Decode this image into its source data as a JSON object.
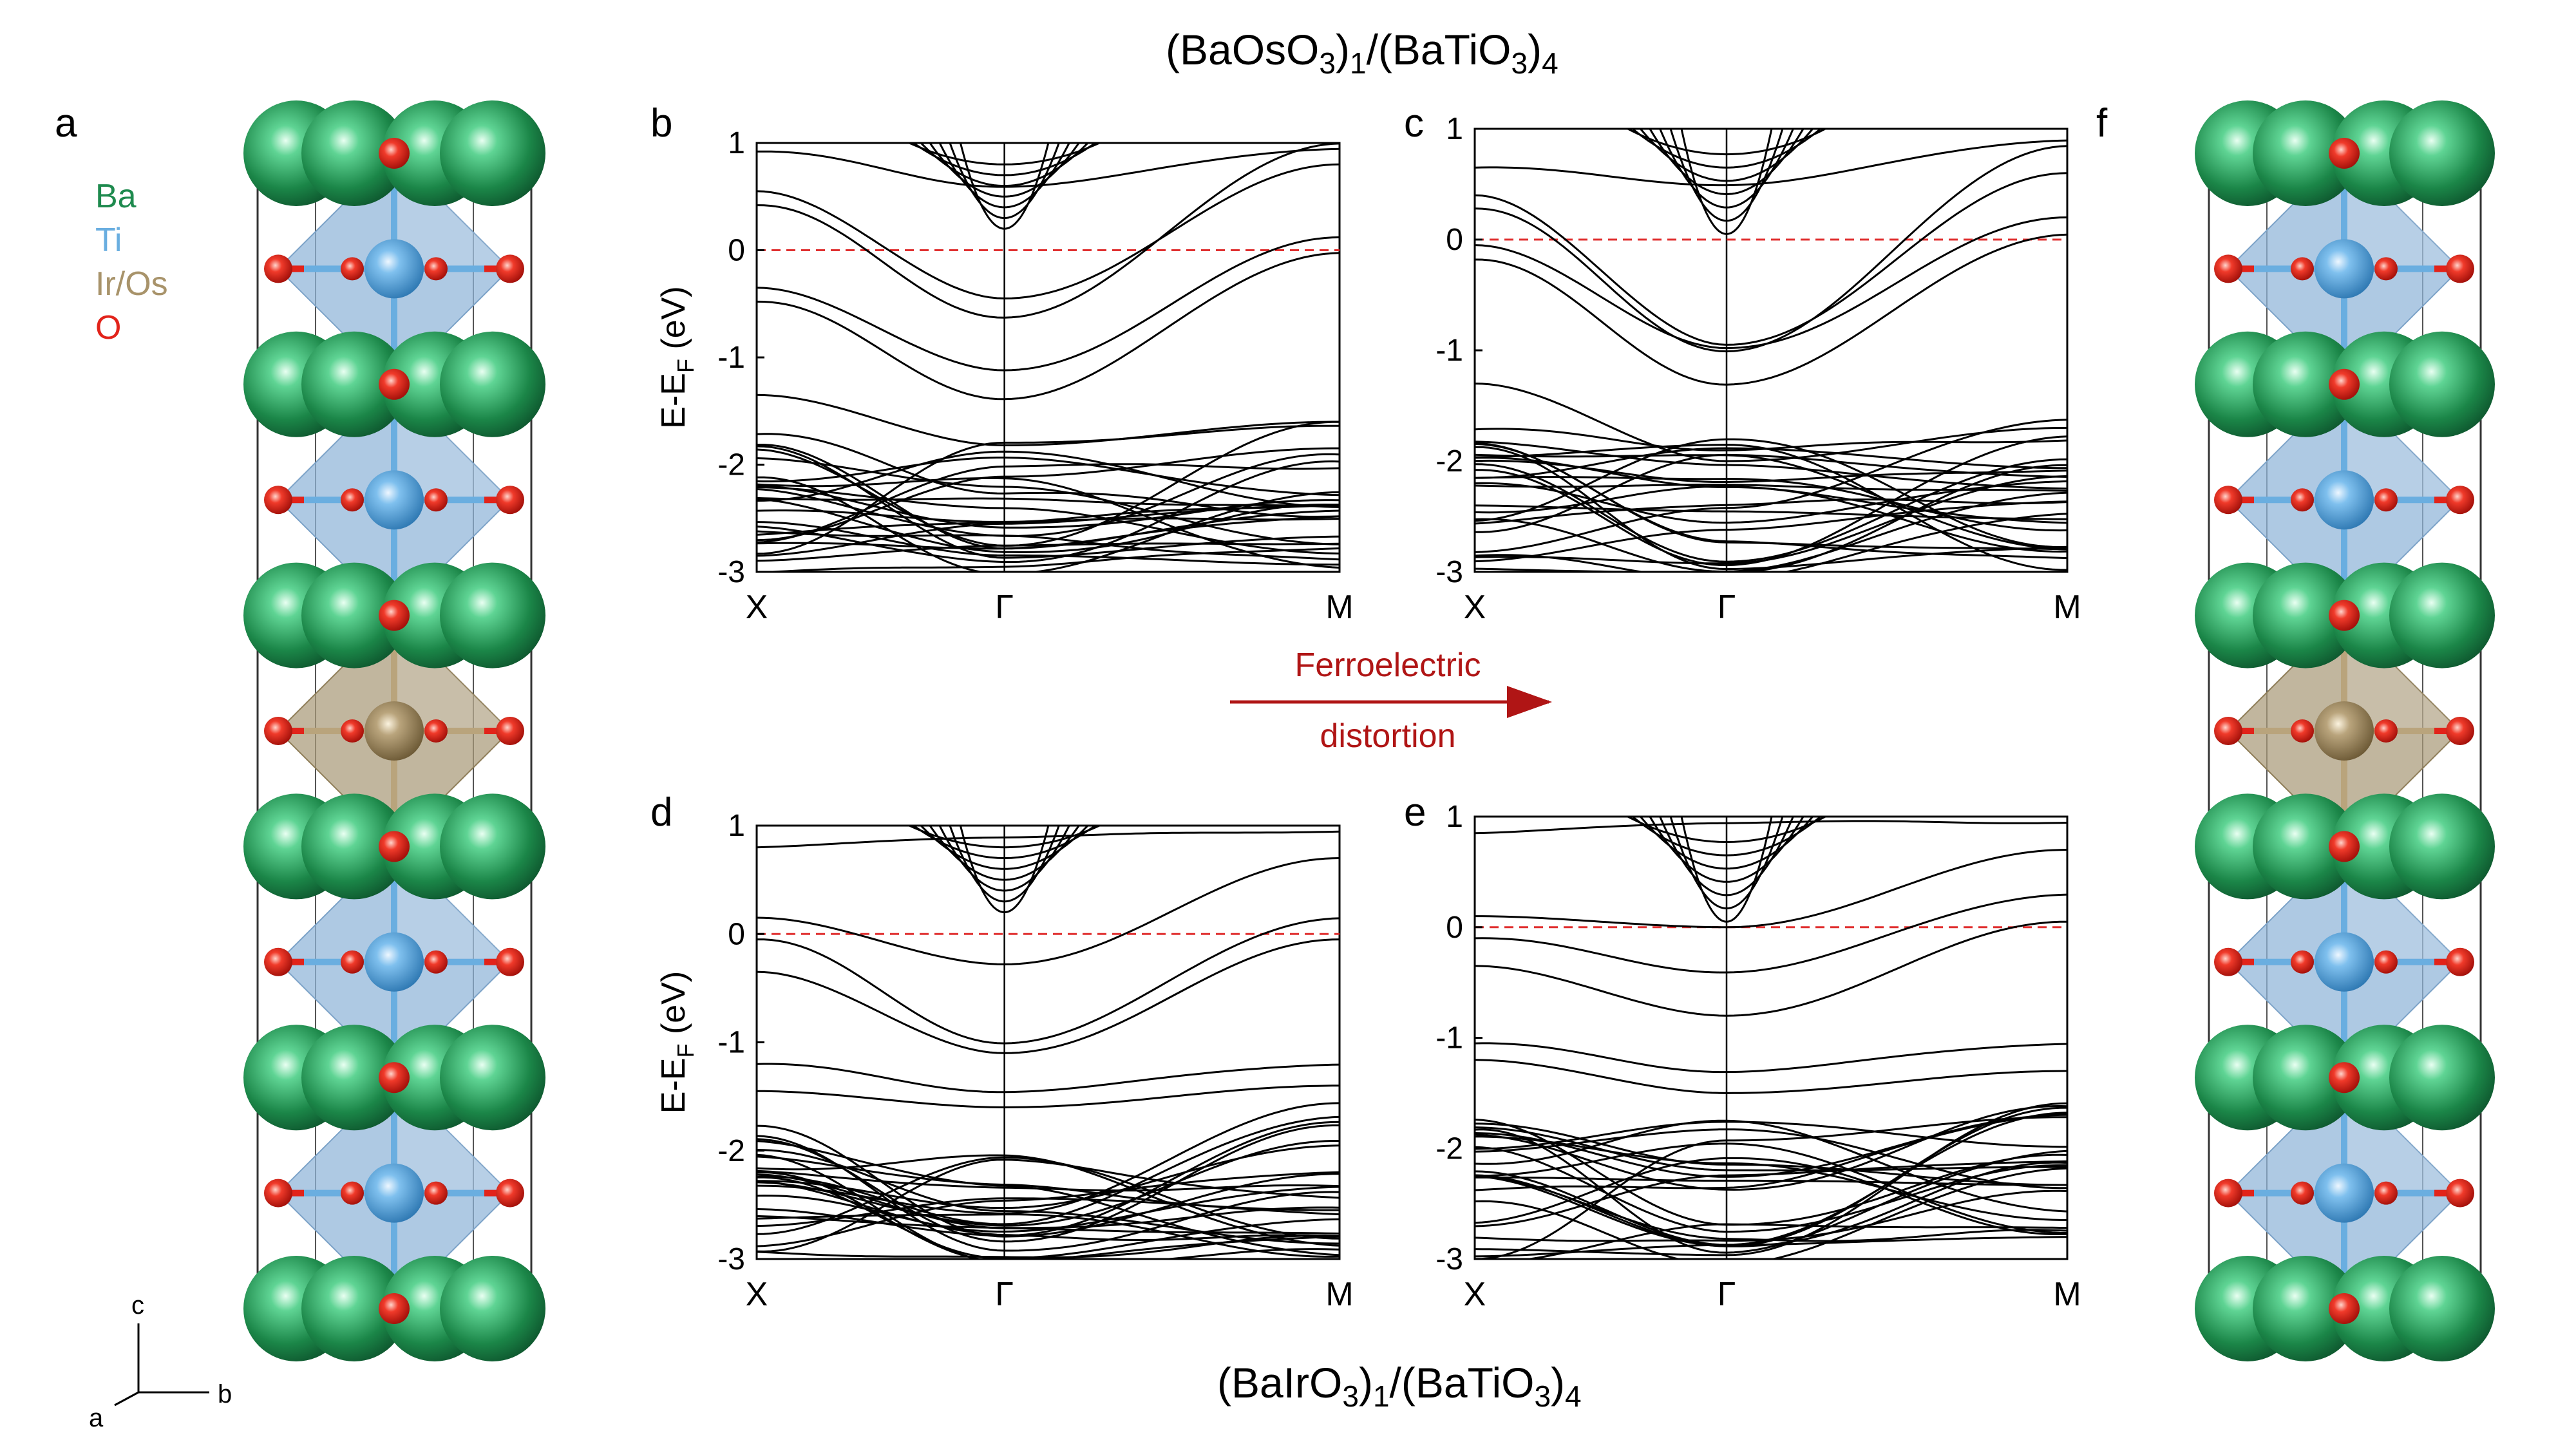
{
  "titles": {
    "top": {
      "base": "(BaOsO",
      "sub1": "3",
      "mid": ")",
      "sub2": "1",
      "tail": "/(BaTiO",
      "sub3": "3",
      "tail2": ")",
      "sub4": "4"
    },
    "bottom": {
      "base": "(BaIrO",
      "sub1": "3",
      "mid": ")",
      "sub2": "1",
      "tail": "/(BaTiO",
      "sub3": "3",
      "tail2": ")",
      "sub4": "4"
    }
  },
  "panel_letters": {
    "a": "a",
    "b": "b",
    "c": "c",
    "d": "d",
    "e": "e",
    "f": "f"
  },
  "legend": {
    "items": [
      {
        "label": "Ba",
        "color": "#1e8a4e"
      },
      {
        "label": "Ti",
        "color": "#6aaee0"
      },
      {
        "label": "Ir/Os",
        "color": "#a8936a"
      },
      {
        "label": "O",
        "color": "#e2231a"
      }
    ]
  },
  "axes_triad": {
    "c": "c",
    "b": "b",
    "a": "a"
  },
  "arrow": {
    "line1": "Ferroelectric",
    "line2": "distortion",
    "color": "#b01515"
  },
  "ylabel": {
    "main": "E-E",
    "sub": "F",
    "unit": " (eV)"
  },
  "colors": {
    "ba": "#1f8a4c",
    "ti": "#5aa3dc",
    "iros": "#a8936a",
    "o": "#e2231a",
    "octa_ti": "#8fb4d8",
    "octa_ir": "#a99a78",
    "fermi": "#e03030"
  },
  "chart_data": [
    {
      "panel": "b",
      "type": "line",
      "xticks": [
        "X",
        "Γ",
        "M"
      ],
      "ylim": [
        -3,
        1
      ],
      "yticks": [
        "1",
        "0",
        "-1",
        "-2",
        "-3"
      ],
      "fermi_level": 0,
      "series_note": "band structure BaOsO3/BaTiO3 paraelectric",
      "bands": [
        {
          "x": [
            0,
            0.5,
            1
          ],
          "y": [
            0.55,
            -0.45,
            0.75
          ]
        },
        {
          "x": [
            0,
            0.5,
            1
          ],
          "y": [
            0.4,
            -0.6,
            0.95
          ]
        },
        {
          "x": [
            0,
            0.5,
            1
          ],
          "y": [
            -0.4,
            -1.1,
            0.1
          ]
        },
        {
          "x": [
            0,
            0.5,
            1
          ],
          "y": [
            -0.5,
            -1.4,
            -0.05
          ]
        },
        {
          "x": [
            0,
            0.5,
            1
          ],
          "y": [
            -1.35,
            -1.8,
            -1.6
          ]
        }
      ]
    },
    {
      "panel": "c",
      "type": "line",
      "xticks": [
        "X",
        "Γ",
        "M"
      ],
      "ylim": [
        -3,
        1
      ],
      "yticks": [
        "1",
        "0",
        "-1",
        "-2",
        "-3"
      ],
      "fermi_level": 0,
      "series_note": "band structure BaOsO3/BaTiO3 ferroelectric"
    },
    {
      "panel": "d",
      "type": "line",
      "xticks": [
        "X",
        "Γ",
        "M"
      ],
      "ylim": [
        -3,
        1
      ],
      "yticks": [
        "1",
        "0",
        "-1",
        "-2",
        "-3"
      ],
      "fermi_level": 0,
      "series_note": "band structure BaIrO3/BaTiO3 paraelectric"
    },
    {
      "panel": "e",
      "type": "line",
      "xticks": [
        "X",
        "Γ",
        "M"
      ],
      "ylim": [
        -3,
        1
      ],
      "yticks": [
        "1",
        "0",
        "-1",
        "-2",
        "-3"
      ],
      "fermi_level": 0,
      "series_note": "band structure BaIrO3/BaTiO3 ferroelectric"
    }
  ]
}
